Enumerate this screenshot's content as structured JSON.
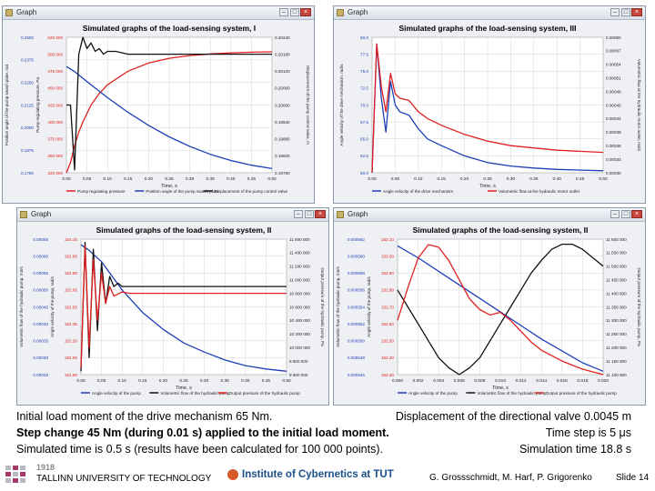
{
  "windows": [
    {
      "window_title": "Graph",
      "chart_title": "Simulated graphs of the load-sensing system, I",
      "xlabel": "Time, s",
      "left_axis_1": {
        "label": "Position angle of the pump swash plate, rad",
        "ticks": [
          "0.2500",
          "0.2375",
          "0.2250",
          "0.2125",
          "0.2000",
          "0.1875",
          "0.1750"
        ]
      },
      "left_axis_2": {
        "label": "Pump regulating pressure, Pa",
        "ticks": [
          "525 000",
          "500 000",
          "475 000",
          "450 000",
          "425 000",
          "400 000",
          "375 000",
          "350 000",
          "325 000"
        ]
      },
      "right_axis": {
        "label": "Displacement of the pump control valve, m",
        "ticks": [
          "0.20240",
          "0.20180",
          "0.20120",
          "0.20060",
          "0.20000",
          "0.19940",
          "0.19880",
          "0.19820",
          "0.19760"
        ]
      },
      "x_ticks": [
        "0.00",
        "0.05",
        "0.10",
        "0.15",
        "0.20",
        "0.25",
        "0.30",
        "0.35",
        "0.40",
        "0.45",
        "0.50"
      ],
      "legend": [
        {
          "label": "Pump regulating pressure",
          "color": "#e02020"
        },
        {
          "label": "Position angle of the pump swash plate",
          "color": "#1f3fb8"
        },
        {
          "label": "Displacement of the pump control valve",
          "color": "#111111"
        }
      ]
    },
    {
      "window_title": "Graph",
      "chart_title": "Simulated graphs of the load-sensing system, III",
      "xlabel": "Time, s",
      "left_axis_1": {
        "label": "Angle velocity of the drive mechanism, rad/s",
        "ticks": [
          "80.0",
          "77.5",
          "75.0",
          "72.5",
          "70.0",
          "67.5",
          "65.0",
          "62.5",
          "60.0"
        ]
      },
      "right_axis": {
        "label": "Volumetric flow at the hydraulic motor outlet, m3/s",
        "ticks": [
          "0.00060",
          "0.00057",
          "0.00054",
          "0.00051",
          "0.00048",
          "0.00045",
          "0.00042",
          "0.00039",
          "0.00036",
          "0.00033",
          "0.00030"
        ]
      },
      "x_ticks": [
        "0.00",
        "0.05",
        "0.10",
        "0.15",
        "0.20",
        "0.25",
        "0.30",
        "0.35",
        "0.40",
        "0.45",
        "0.50"
      ],
      "legend": [
        {
          "label": "Angle velocity of the drive mechanism",
          "color": "#1f3fb8"
        },
        {
          "label": "Volumetric flow at the hydraulic motor outlet",
          "color": "#e02020"
        }
      ]
    },
    {
      "window_title": "Graph",
      "chart_title": "Simulated graphs of the load-sensing system, II",
      "xlabel": "Time, s",
      "left_axis_1": {
        "label": "Volumetric flow of the hydraulic pump, m3/s",
        "ticks": [
          "0.00065",
          "0.00060",
          "0.00055",
          "0.00050",
          "0.00045",
          "0.00040",
          "0.00035",
          "0.00030",
          "0.00025"
        ]
      },
      "left_axis_2": {
        "label": "Angle velocity of the pump, rad/s",
        "ticks": [
          "153.10",
          "152.95",
          "152.80",
          "152.65",
          "152.50",
          "152.35",
          "152.20",
          "152.05",
          "151.90"
        ]
      },
      "right_axis": {
        "label": "Output pressure of the hydraulic pump, Pa",
        "ticks": [
          "11 600 000",
          "11 400 000",
          "11 200 000",
          "11 000 000",
          "10 800 000",
          "10 600 000",
          "10 400 000",
          "10 200 000",
          "10 000 000",
          "9 800 000",
          "9 600 000"
        ]
      },
      "x_ticks": [
        "0.00",
        "0.05",
        "0.10",
        "0.15",
        "0.20",
        "0.25",
        "0.30",
        "0.35",
        "0.40",
        "0.45",
        "0.50"
      ],
      "legend": [
        {
          "label": "Angle velocity of the pump",
          "color": "#1f3fb8"
        },
        {
          "label": "Volumetric flow of the hydraulic pump",
          "color": "#111111"
        },
        {
          "label": "Output pressure of the hydraulic pump",
          "color": "#e02020"
        }
      ]
    },
    {
      "window_title": "Graph",
      "chart_title": "Simulated graphs of the load-sensing system, II",
      "xlabel": "Time, s",
      "left_axis_1": {
        "label": "Volumetric flow of the hydraulic pump, m3/s",
        "ticks": [
          "0.000562",
          "0.000560",
          "0.000558",
          "0.000556",
          "0.000554",
          "0.000552",
          "0.000550",
          "0.000548",
          "0.000546"
        ]
      },
      "left_axis_2": {
        "label": "Angle velocity of the pump, rad/s",
        "ticks": [
          "153.10",
          "153.00",
          "152.90",
          "152.80",
          "152.70",
          "152.60",
          "152.50",
          "152.40",
          "152.30"
        ]
      },
      "right_axis": {
        "label": "Output pressure of the hydraulic pump, Pa",
        "ticks": [
          "11 600 000",
          "11 550 000",
          "11 500 000",
          "11 450 000",
          "11 400 000",
          "11 350 000",
          "11 300 000",
          "11 250 000",
          "11 200 000",
          "11 150 000",
          "11 100 000"
        ]
      },
      "x_ticks": [
        "0.000",
        "0.002",
        "0.004",
        "0.006",
        "0.008",
        "0.010",
        "0.012",
        "0.014",
        "0.016",
        "0.018",
        "0.020"
      ],
      "legend": [
        {
          "label": "Angle velocity of the pump",
          "color": "#1f3fb8"
        },
        {
          "label": "Volumetric flow of the hydraulic pump",
          "color": "#111111"
        },
        {
          "label": "Output pressure of the hydraulic pump",
          "color": "#e02020"
        }
      ]
    }
  ],
  "chart_data": [
    {
      "type": "line",
      "title": "Simulated graphs of the load-sensing system, I",
      "xlabel": "Time, s",
      "xlim": [
        0,
        0.5
      ],
      "series": [
        {
          "name": "Pump regulating pressure",
          "color": "#e02020",
          "ylim": [
            325000,
            525000
          ],
          "x": [
            0,
            0.01,
            0.02,
            0.03,
            0.04,
            0.06,
            0.08,
            0.1,
            0.15,
            0.2,
            0.25,
            0.3,
            0.35,
            0.4,
            0.45,
            0.5
          ],
          "y": [
            325000,
            340000,
            365000,
            385000,
            400000,
            425000,
            442000,
            455000,
            475000,
            487000,
            494000,
            498000,
            500500,
            502000,
            503000,
            503500
          ]
        },
        {
          "name": "Position angle of the pump swash plate",
          "color": "#1f3fb8",
          "ylim": [
            0.175,
            0.25
          ],
          "x": [
            0,
            0.02,
            0.05,
            0.1,
            0.15,
            0.2,
            0.25,
            0.3,
            0.35,
            0.4,
            0.45,
            0.5
          ],
          "y": [
            0.2338,
            0.231,
            0.2255,
            0.2166,
            0.2084,
            0.2012,
            0.1949,
            0.1896,
            0.1852,
            0.1818,
            0.1792,
            0.1773
          ]
        },
        {
          "name": "Displacement of the pump control valve",
          "color": "#111111",
          "ylim": [
            0.1976,
            0.2024
          ],
          "x": [
            0,
            0.01,
            0.02,
            0.03,
            0.04,
            0.05,
            0.06,
            0.07,
            0.08,
            0.09,
            0.1,
            0.12,
            0.15,
            0.2,
            0.3,
            0.4,
            0.5
          ],
          "y": [
            0.2,
            0.2,
            0.1977,
            0.2018,
            0.2024,
            0.202,
            0.2022,
            0.2019,
            0.202,
            0.2018,
            0.2019,
            0.2019,
            0.2018,
            0.2018,
            0.2018,
            0.2018,
            0.2018
          ]
        }
      ]
    },
    {
      "type": "line",
      "title": "Simulated graphs of the load-sensing system, III",
      "xlabel": "Time, s",
      "xlim": [
        0,
        0.5
      ],
      "series": [
        {
          "name": "Angle velocity of the drive mechanism",
          "color": "#1f3fb8",
          "ylim": [
            60,
            80
          ],
          "x": [
            0,
            0.01,
            0.02,
            0.03,
            0.04,
            0.05,
            0.06,
            0.08,
            0.1,
            0.12,
            0.15,
            0.2,
            0.25,
            0.3,
            0.35,
            0.4,
            0.5
          ],
          "y": [
            60,
            79,
            71,
            66,
            73.5,
            70,
            69,
            68.5,
            66.5,
            65,
            64,
            62.5,
            61.5,
            61,
            60.7,
            60.5,
            60.3
          ]
        },
        {
          "name": "Volumetric flow at the hydraulic motor outlet",
          "color": "#e02020",
          "ylim": [
            0.0003,
            0.0006
          ],
          "x": [
            0,
            0.01,
            0.02,
            0.03,
            0.04,
            0.05,
            0.06,
            0.08,
            0.1,
            0.12,
            0.15,
            0.2,
            0.25,
            0.3,
            0.35,
            0.4,
            0.5
          ],
          "y": [
            0.0003,
            0.000585,
            0.00049,
            0.000435,
            0.00052,
            0.000475,
            0.000465,
            0.00046,
            0.000435,
            0.00042,
            0.000405,
            0.000385,
            0.00037,
            0.00036,
            0.000355,
            0.00035,
            0.000345
          ]
        }
      ]
    },
    {
      "type": "line",
      "title": "Simulated graphs of the load-sensing system, II",
      "xlabel": "Time, s",
      "xlim": [
        0,
        0.5
      ],
      "series": [
        {
          "name": "Angle velocity of the pump",
          "color": "#1f3fb8",
          "ylim": [
            151.9,
            153.1
          ],
          "x": [
            0,
            0.02,
            0.05,
            0.1,
            0.15,
            0.2,
            0.25,
            0.3,
            0.35,
            0.4,
            0.45,
            0.5
          ],
          "y": [
            153.05,
            153.0,
            152.9,
            152.65,
            152.45,
            152.3,
            152.18,
            152.1,
            152.03,
            151.98,
            151.95,
            151.93
          ]
        },
        {
          "name": "Volumetric flow of the hydraulic pump",
          "color": "#111111",
          "ylim": [
            0.00025,
            0.00065
          ],
          "x": [
            0,
            0.01,
            0.02,
            0.03,
            0.04,
            0.05,
            0.06,
            0.07,
            0.08,
            0.09,
            0.1,
            0.12,
            0.15,
            0.2,
            0.3,
            0.4,
            0.5
          ],
          "y": [
            0.00026,
            0.00064,
            0.0003,
            0.00062,
            0.00038,
            0.00058,
            0.00046,
            0.00054,
            0.00051,
            0.00052,
            0.00051,
            0.00051,
            0.00051,
            0.00051,
            0.00051,
            0.00051,
            0.00051
          ]
        },
        {
          "name": "Output pressure of the hydraulic pump",
          "color": "#e02020",
          "ylim": [
            9600000,
            11600000
          ],
          "x": [
            0,
            0.01,
            0.02,
            0.03,
            0.04,
            0.05,
            0.06,
            0.07,
            0.08,
            0.1,
            0.12,
            0.15,
            0.2,
            0.3,
            0.4,
            0.5
          ],
          "y": [
            9700000,
            11500000,
            10000000,
            11300000,
            10400000,
            11100000,
            10650000,
            10900000,
            10760000,
            10820000,
            10800000,
            10800000,
            10800000,
            10800000,
            10800000,
            10800000
          ]
        }
      ]
    },
    {
      "type": "line",
      "title": "Simulated graphs of the load-sensing system, II",
      "xlabel": "Time, s",
      "xlim": [
        0,
        0.02
      ],
      "series": [
        {
          "name": "Angle velocity of the pump",
          "color": "#1f3fb8",
          "ylim": [
            152.3,
            153.1
          ],
          "x": [
            0,
            0.002,
            0.004,
            0.006,
            0.008,
            0.01,
            0.012,
            0.014,
            0.016,
            0.018,
            0.02
          ],
          "y": [
            153.06,
            152.99,
            152.91,
            152.83,
            152.75,
            152.67,
            152.59,
            152.51,
            152.44,
            152.37,
            152.32
          ]
        },
        {
          "name": "Volumetric flow of the hydraulic pump",
          "color": "#111111",
          "ylim": [
            0.000546,
            0.000562
          ],
          "x": [
            0,
            0.001,
            0.002,
            0.003,
            0.004,
            0.005,
            0.006,
            0.007,
            0.008,
            0.009,
            0.01,
            0.011,
            0.012,
            0.013,
            0.014,
            0.015,
            0.016,
            0.017,
            0.018,
            0.019,
            0.02
          ],
          "y": [
            0.000556,
            0.000554,
            0.000552,
            0.00055,
            0.000548,
            0.0005468,
            0.000546,
            0.0005468,
            0.000548,
            0.00055,
            0.000552,
            0.000554,
            0.000556,
            0.000558,
            0.0005595,
            0.0005608,
            0.0005614,
            0.0005614,
            0.0005608,
            0.0005598,
            0.0005588
          ]
        },
        {
          "name": "Output pressure of the hydraulic pump",
          "color": "#e02020",
          "ylim": [
            11100000,
            11600000
          ],
          "x": [
            0,
            0.001,
            0.002,
            0.003,
            0.004,
            0.005,
            0.006,
            0.007,
            0.008,
            0.009,
            0.01,
            0.011,
            0.012,
            0.013,
            0.014,
            0.015,
            0.016,
            0.017,
            0.018,
            0.019,
            0.02
          ],
          "y": [
            11300000,
            11420000,
            11530000,
            11580000,
            11570000,
            11520000,
            11450000,
            11380000,
            11340000,
            11320000,
            11330000,
            11300000,
            11260000,
            11220000,
            11190000,
            11170000,
            11150000,
            11135000,
            11120000,
            11110000,
            11100000
          ]
        }
      ]
    }
  ],
  "caption": {
    "line1_left": "Initial load moment of the drive mechanism 65 Nm.",
    "line1_right": "Displacement of the directional valve 0.0045 m",
    "line2_left": "Step change 45 Nm (during 0.01 s) applied to the initial load moment.",
    "line2_right": "Time step is 5 μs",
    "line3_left": "Simulated time is 0.5 s (results have been calculated for 100 000 points).",
    "line3_right": "Simulation time 18.8 s"
  },
  "footer": {
    "year": "1918",
    "university": "TALLINN UNIVERSITY OF TECHNOLOGY",
    "institute": "Institute of Cybernetics at TUT",
    "authors": "G. Grossschmidt, M. Harf, P. Grigorenko",
    "slide": "Slide 14"
  }
}
